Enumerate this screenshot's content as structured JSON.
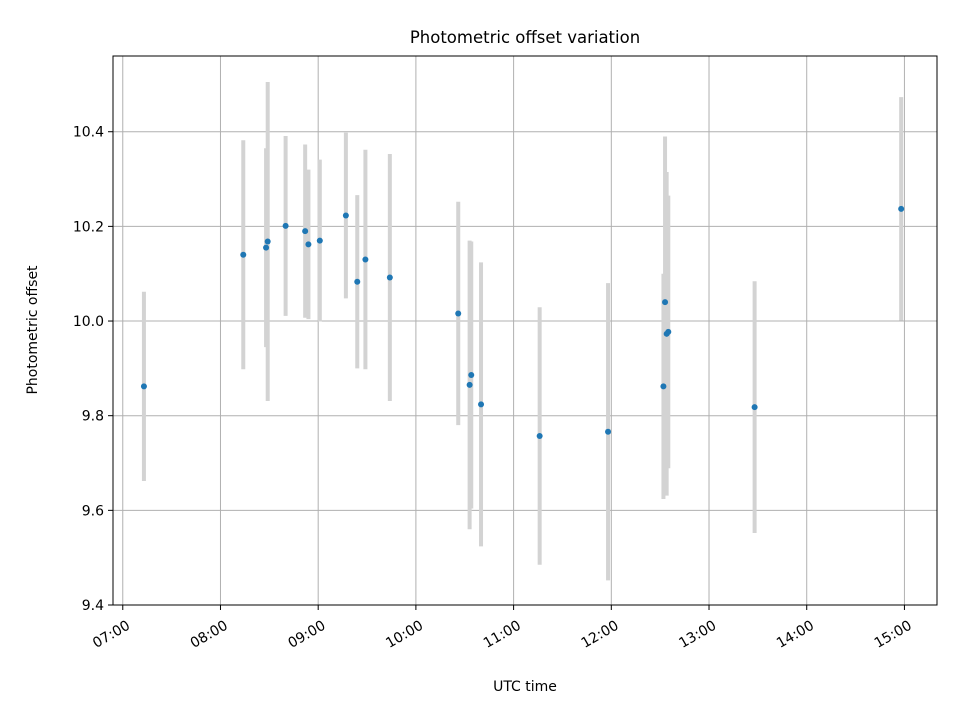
{
  "chart_data": {
    "type": "scatter",
    "title": "Photometric offset variation",
    "xlabel": "UTC time",
    "ylabel": "Photometric offset",
    "xlim": [
      "06:54",
      "15:20"
    ],
    "ylim": [
      9.4,
      10.56
    ],
    "x_ticks": [
      "07:00",
      "08:00",
      "09:00",
      "10:00",
      "11:00",
      "12:00",
      "13:00",
      "14:00",
      "15:00"
    ],
    "y_ticks": [
      9.4,
      9.6,
      9.8,
      10.0,
      10.2,
      10.4
    ],
    "grid": true,
    "legend": "none",
    "colors": {
      "point": "#1f77b4",
      "errorbar": "#d3d3d3"
    },
    "points": [
      {
        "x": "07:13",
        "y": 9.862,
        "err": 0.2
      },
      {
        "x": "08:14",
        "y": 10.14,
        "err": 0.242
      },
      {
        "x": "08:28",
        "y": 10.155,
        "err": 0.21
      },
      {
        "x": "08:29",
        "y": 10.168,
        "err": 0.337
      },
      {
        "x": "08:40",
        "y": 10.201,
        "err": 0.19
      },
      {
        "x": "08:52",
        "y": 10.19,
        "err": 0.183
      },
      {
        "x": "08:54",
        "y": 10.162,
        "err": 0.158
      },
      {
        "x": "09:01",
        "y": 10.17,
        "err": 0.171
      },
      {
        "x": "09:17",
        "y": 10.223,
        "err": 0.175
      },
      {
        "x": "09:24",
        "y": 10.083,
        "err": 0.183
      },
      {
        "x": "09:29",
        "y": 10.13,
        "err": 0.232
      },
      {
        "x": "09:44",
        "y": 10.092,
        "err": 0.261
      },
      {
        "x": "10:26",
        "y": 10.016,
        "err": 0.236
      },
      {
        "x": "10:33",
        "y": 9.865,
        "err": 0.305
      },
      {
        "x": "10:34",
        "y": 9.886,
        "err": 0.282
      },
      {
        "x": "10:40",
        "y": 9.824,
        "err": 0.3
      },
      {
        "x": "11:16",
        "y": 9.757,
        "err": 0.272
      },
      {
        "x": "11:58",
        "y": 9.766,
        "err": 0.314
      },
      {
        "x": "12:32",
        "y": 9.862,
        "err": 0.238
      },
      {
        "x": "12:33",
        "y": 10.04,
        "err": 0.35
      },
      {
        "x": "12:34",
        "y": 9.973,
        "err": 0.342
      },
      {
        "x": "12:35",
        "y": 9.977,
        "err": 0.288
      },
      {
        "x": "13:28",
        "y": 9.818,
        "err": 0.266
      },
      {
        "x": "14:58",
        "y": 10.237,
        "err": 0.236
      }
    ]
  }
}
